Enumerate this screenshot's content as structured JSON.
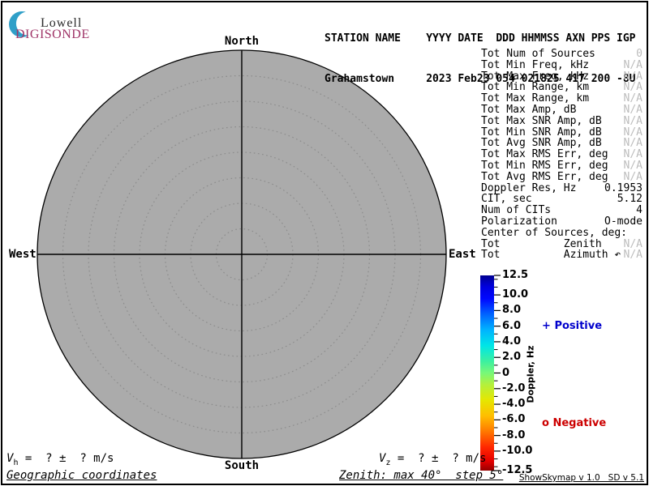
{
  "window": {
    "background": "#ffffff",
    "border_color": "#000000"
  },
  "logo": {
    "line1": "Lowell",
    "line2": "DIGISONDE",
    "crescent_color": "#2f9fc8",
    "lowell_color": "#2b2b2b",
    "digisonde_color": "#a03568"
  },
  "header": {
    "labels_line": "STATION NAME    YYYY DATE  DDD HHMMSS AXN PPS IGP",
    "values_line": "Grahamstown     2023 Feb23 054 021825 417 200 -8U"
  },
  "compass": {
    "north": "North",
    "south": "South",
    "east": "East",
    "west": "West"
  },
  "stats": {
    "rows": [
      {
        "label": "Tot Num of Sources",
        "value": "0",
        "dim": true
      },
      {
        "label": "Tot Min Freq, kHz",
        "value": "N/A",
        "dim": true
      },
      {
        "label": "Tot Max Freq, kHz",
        "value": "N/A",
        "dim": true
      },
      {
        "label": "Tot Min Range, km",
        "value": "N/A",
        "dim": true
      },
      {
        "label": "Tot Max Range, km",
        "value": "N/A",
        "dim": true
      },
      {
        "label": "Tot Max Amp, dB",
        "value": "N/A",
        "dim": true
      },
      {
        "label": "Tot Max SNR Amp, dB",
        "value": "N/A",
        "dim": true
      },
      {
        "label": "Tot Min SNR Amp, dB",
        "value": "N/A",
        "dim": true
      },
      {
        "label": "Tot Avg SNR Amp, dB",
        "value": "N/A",
        "dim": true
      },
      {
        "label": "Tot Max RMS Err, deg",
        "value": "N/A",
        "dim": true
      },
      {
        "label": "Tot Min RMS Err, deg",
        "value": "N/A",
        "dim": true
      },
      {
        "label": "Tot Avg RMS Err, deg",
        "value": "N/A",
        "dim": true
      },
      {
        "label": "Doppler Res, Hz",
        "value": "0.1953",
        "dim": false
      },
      {
        "label": "CIT, sec",
        "value": "5.12",
        "dim": false
      },
      {
        "label": "Num of CITs",
        "value": "4",
        "dim": false
      },
      {
        "label": "Polarization",
        "value": "O-mode",
        "dim": false
      },
      {
        "label": "Center of Sources, deg:",
        "value": "",
        "dim": false
      },
      {
        "label": "Tot          Zenith",
        "value": "N/A",
        "dim": true
      },
      {
        "label": "Tot          Azimuth ↶",
        "value": "N/A",
        "dim": true
      }
    ],
    "dim_color": "#bcbcbc"
  },
  "legend": {
    "positive_marker": "+",
    "positive_label": "Positive",
    "positive_color": "#0000cc",
    "negative_marker": "o",
    "negative_label": "Negative",
    "negative_color": "#cc0000"
  },
  "footer": {
    "vh": {
      "symbol": "V",
      "sub": "h",
      "text": " =  ? ±  ? m/s"
    },
    "vz": {
      "symbol": "V",
      "sub": "z",
      "text": " =  ? ±  ? m/s"
    },
    "coords_note": "Geographic coordinates",
    "zenith_note": "Zenith: max 40°  step 5°",
    "version": "ShowSkymap v 1.0   SD v 5.1"
  },
  "chart_data": {
    "type": "polar-skymap",
    "zenith_max_deg": 40,
    "zenith_step_deg": 5,
    "ring_count": 8,
    "sources": [],
    "plot_fill": "#ababab",
    "ring_dot_color": "#8c8c8c",
    "colorbar": {
      "title": "Doppler, Hz",
      "min": -12.5,
      "max": 12.5,
      "minor_step": 1,
      "ticks": [
        {
          "v": 12.5,
          "label": "12.5"
        },
        {
          "v": 10,
          "label": "10.0"
        },
        {
          "v": 8,
          "label": "8.0"
        },
        {
          "v": 6,
          "label": "6.0"
        },
        {
          "v": 4,
          "label": "4.0"
        },
        {
          "v": 2,
          "label": "2.0"
        },
        {
          "v": 0,
          "label": "0"
        },
        {
          "v": -2,
          "label": "-2.0"
        },
        {
          "v": -4,
          "label": "-4.0"
        },
        {
          "v": -6,
          "label": "-6.0"
        },
        {
          "v": -8,
          "label": "-8.0"
        },
        {
          "v": -10,
          "label": "-10.0"
        },
        {
          "v": -12.5,
          "label": "-12.5"
        }
      ],
      "gradient": [
        {
          "pct": 0,
          "color": "#000090"
        },
        {
          "pct": 6,
          "color": "#0000e0"
        },
        {
          "pct": 12,
          "color": "#0008ff"
        },
        {
          "pct": 20,
          "color": "#0064ff"
        },
        {
          "pct": 28,
          "color": "#00b4ff"
        },
        {
          "pct": 36,
          "color": "#00e6e6"
        },
        {
          "pct": 44,
          "color": "#3cf0a0"
        },
        {
          "pct": 50,
          "color": "#78f878"
        },
        {
          "pct": 56,
          "color": "#b4f03c"
        },
        {
          "pct": 64,
          "color": "#e6e600"
        },
        {
          "pct": 72,
          "color": "#ffbe00"
        },
        {
          "pct": 80,
          "color": "#ff7800"
        },
        {
          "pct": 88,
          "color": "#ff2800"
        },
        {
          "pct": 95,
          "color": "#e60000"
        },
        {
          "pct": 100,
          "color": "#960000"
        }
      ]
    }
  }
}
